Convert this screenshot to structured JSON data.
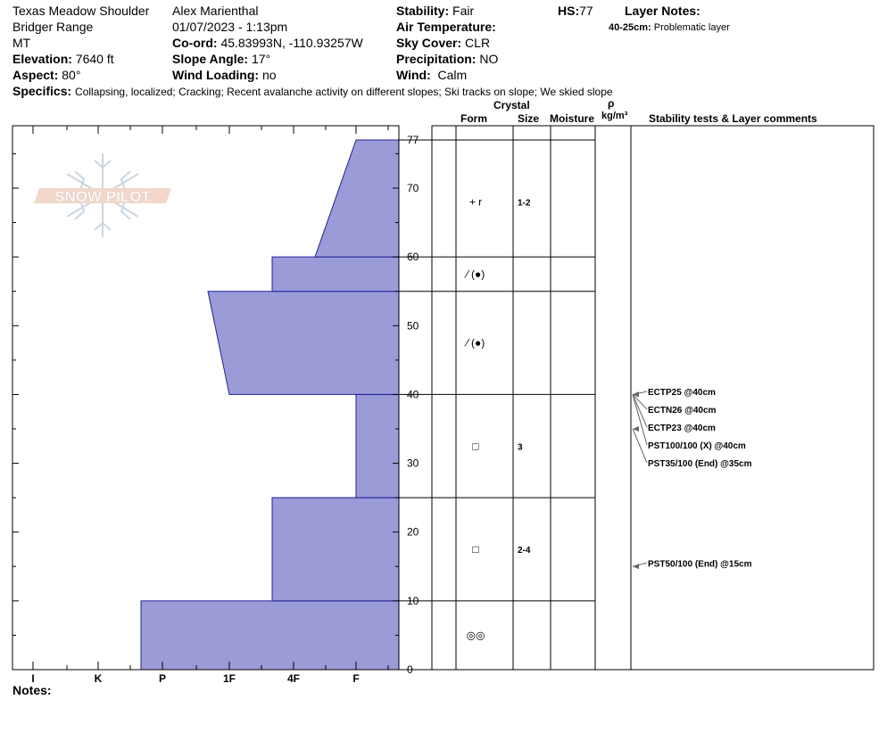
{
  "header": {
    "location": "Texas Meadow Shoulder",
    "range": "Bridger Range",
    "state": "MT",
    "elevation_label": "Elevation:",
    "elevation": "7640 ft",
    "aspect_label": "Aspect:",
    "aspect": "80°",
    "observer": "Alex Marienthal",
    "datetime": "01/07/2023 - 1:13pm",
    "coord_label": "Co-ord:",
    "coord": "45.83993N, -110.93257W",
    "slope_label": "Slope Angle:",
    "slope": "17°",
    "wind_loading_label": "Wind Loading:",
    "wind_loading": "no",
    "stability_label": "Stability:",
    "stability": "Fair",
    "air_temp_label": "Air Temperature:",
    "air_temp": "",
    "sky_label": "Sky Cover:",
    "sky": "CLR",
    "precip_label": "Precipitation:",
    "precip": "NO",
    "wind_label": "Wind:",
    "wind": "Calm",
    "hs_label": "HS:",
    "hs": "77",
    "layer_notes_label": "Layer Notes:",
    "layer_notes_range": "40-25cm:",
    "layer_notes_text": "Problematic layer",
    "specifics_label": "Specifics:",
    "specifics": "Collapsing, localized;  Cracking;  Recent avalanche activity on different slopes;  Ski tracks on slope;  We skied slope"
  },
  "logo_text": "SNOW PILOT",
  "notes_label": "Notes:",
  "columns": {
    "crystal": "Crystal",
    "form": "Form",
    "size": "Size",
    "moisture": "Moisture",
    "rho": "ρ",
    "density_unit": "kg/m³",
    "stability_tests": "Stability tests & Layer comments"
  },
  "colors": {
    "fill": "#9b9bd8",
    "stroke": "#1f1f9e"
  },
  "chart_data": {
    "type": "area",
    "title": "",
    "xlabel": "",
    "ylabel": "",
    "x_categories": [
      "I",
      "K",
      "P",
      "1F",
      "4F",
      "F"
    ],
    "y_ticks": [
      0,
      10,
      20,
      30,
      40,
      50,
      60,
      70,
      77
    ],
    "ylim": [
      0,
      77
    ],
    "hardness_profile": [
      {
        "bottom": 0,
        "top": 10,
        "hardness_bottom": "P+",
        "hardness_top": "P+"
      },
      {
        "bottom": 10,
        "top": 25,
        "hardness_bottom": "4F+",
        "hardness_top": "4F+"
      },
      {
        "bottom": 25,
        "top": 40,
        "hardness_bottom": "F",
        "hardness_top": "F"
      },
      {
        "bottom": 40,
        "top": 55,
        "hardness_bottom": "1F",
        "hardness_top": "1F+"
      },
      {
        "bottom": 55,
        "top": 60,
        "hardness_bottom": "4F+",
        "hardness_top": "4F+"
      },
      {
        "bottom": 60,
        "top": 77,
        "hardness_bottom": "4F-",
        "hardness_top": "F"
      }
    ],
    "layer_boundaries": [
      77,
      60,
      55,
      40,
      25,
      10,
      0
    ],
    "layers": [
      {
        "center": 68,
        "form": "+ r",
        "size": "1-2"
      },
      {
        "center": 57.5,
        "form": "⁄ (●)",
        "size": ""
      },
      {
        "center": 47.5,
        "form": "⁄ (●)",
        "size": ""
      },
      {
        "center": 32.5,
        "form": "□",
        "size": "3"
      },
      {
        "center": 17.5,
        "form": "□",
        "size": "2-4"
      },
      {
        "center": 5,
        "form": "◎◎",
        "size": ""
      }
    ],
    "stability_tests": [
      {
        "depth": 40,
        "text": "ECTP25 @40cm"
      },
      {
        "depth": 40,
        "text": "ECTN26 @40cm"
      },
      {
        "depth": 40,
        "text": "ECTP23 @40cm"
      },
      {
        "depth": 40,
        "text": "PST100/100 (X) @40cm"
      },
      {
        "depth": 35,
        "text": "PST35/100 (End) @35cm"
      },
      {
        "depth": 15,
        "text": "PST50/100 (End) @15cm"
      }
    ]
  }
}
